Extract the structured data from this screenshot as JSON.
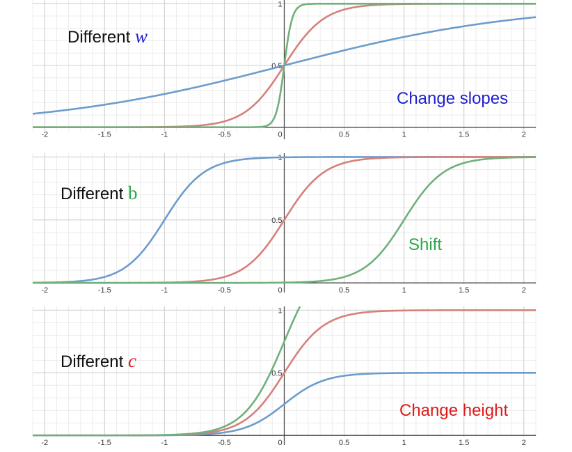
{
  "colors": {
    "blue": "#6d9ccc",
    "red": "#d6807a",
    "green": "#6fb07c",
    "note_blue": "#1f1fcf",
    "note_green": "#2ba84a",
    "note_red": "#e01a1a",
    "var_w": "#1f1fcf",
    "var_b": "#2ba84a",
    "var_c": "#e01a1a"
  },
  "panels": [
    {
      "label_prefix": "Different ",
      "label_var": "w",
      "note": "Change slopes"
    },
    {
      "label_prefix": "Different ",
      "label_var": "b",
      "note": "Shift"
    },
    {
      "label_prefix": "Different ",
      "label_var": "c",
      "note": "Change height"
    }
  ],
  "chart_data": [
    {
      "type": "line",
      "title": "",
      "xlim": [
        -2.1,
        2.1
      ],
      "ylim": [
        -0.03,
        1.03
      ],
      "x_ticks": [
        "-2",
        "-1.5",
        "-1",
        "-0.5",
        "0",
        "0.5",
        "1",
        "1.5",
        "2"
      ],
      "x_tick_values": [
        -2,
        -1.5,
        -1,
        -0.5,
        0,
        0.5,
        1,
        1.5,
        2
      ],
      "y_ticks": [
        "0.5",
        "1"
      ],
      "y_tick_values": [
        0.5,
        1
      ],
      "grid": true,
      "series": [
        {
          "color": "blue",
          "function": "sigmoid",
          "w": 1,
          "b": 0,
          "c": 1
        },
        {
          "color": "red",
          "function": "sigmoid",
          "w": 6,
          "b": 0,
          "c": 1
        },
        {
          "color": "green",
          "function": "sigmoid",
          "w": 30,
          "b": 0,
          "c": 1
        }
      ]
    },
    {
      "type": "line",
      "title": "",
      "xlim": [
        -2.1,
        2.1
      ],
      "ylim": [
        -0.01,
        1.03
      ],
      "x_ticks": [
        "-2",
        "-1.5",
        "-1",
        "-0.5",
        "0",
        "0.5",
        "1",
        "1.5",
        "2"
      ],
      "x_tick_values": [
        -2,
        -1.5,
        -1,
        -0.5,
        0,
        0.5,
        1,
        1.5,
        2
      ],
      "y_ticks": [
        "0.5",
        "1"
      ],
      "y_tick_values": [
        0.5,
        1
      ],
      "grid": true,
      "series": [
        {
          "color": "blue",
          "function": "sigmoid",
          "w": 6,
          "b": 6,
          "c": 1
        },
        {
          "color": "red",
          "function": "sigmoid",
          "w": 6,
          "b": 0,
          "c": 1
        },
        {
          "color": "green",
          "function": "sigmoid",
          "w": 6,
          "b": -6,
          "c": 1
        }
      ]
    },
    {
      "type": "line",
      "title": "",
      "xlim": [
        -2.1,
        2.1
      ],
      "ylim": [
        -0.01,
        1.03
      ],
      "x_ticks": [
        "-2",
        "-1.5",
        "-1",
        "-0.5",
        "0",
        "0.5",
        "1",
        "1.5",
        "2"
      ],
      "x_tick_values": [
        -2,
        -1.5,
        -1,
        -0.5,
        0,
        0.5,
        1,
        1.5,
        2
      ],
      "y_ticks": [
        "0.5",
        "1"
      ],
      "y_tick_values": [
        0.5,
        1
      ],
      "grid": true,
      "series": [
        {
          "color": "blue",
          "function": "sigmoid",
          "w": 6,
          "b": 0,
          "c": 0.5
        },
        {
          "color": "red",
          "function": "sigmoid",
          "w": 6,
          "b": 0,
          "c": 1
        },
        {
          "color": "green",
          "function": "sigmoid",
          "w": 6,
          "b": 0,
          "c": 1.5
        }
      ]
    }
  ]
}
